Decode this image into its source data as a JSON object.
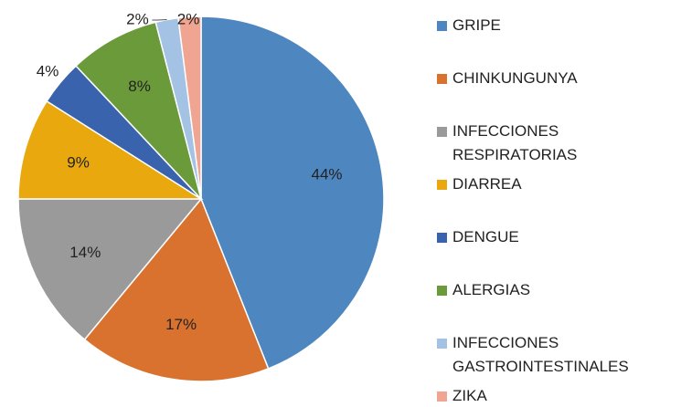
{
  "chart_data": {
    "type": "pie",
    "categories": [
      "GRIPE",
      "CHINKUNGUNYA",
      "INFECCIONES RESPIRATORIAS",
      "DIARREA",
      "DENGUE",
      "ALERGIAS",
      "INFECCIONES GASTROINTESTINALES",
      "ZIKA"
    ],
    "values": [
      44,
      17,
      14,
      9,
      4,
      8,
      2,
      2
    ],
    "value_labels": [
      "44%",
      "17%",
      "14%",
      "9%",
      "4%",
      "8%",
      "2%",
      "2%"
    ],
    "colors": [
      "#4e86c0",
      "#d9712f",
      "#9a9a9a",
      "#e8a80e",
      "#3a63ae",
      "#6a9a3a",
      "#a4c2e4",
      "#f0a592"
    ],
    "legend": "right"
  }
}
